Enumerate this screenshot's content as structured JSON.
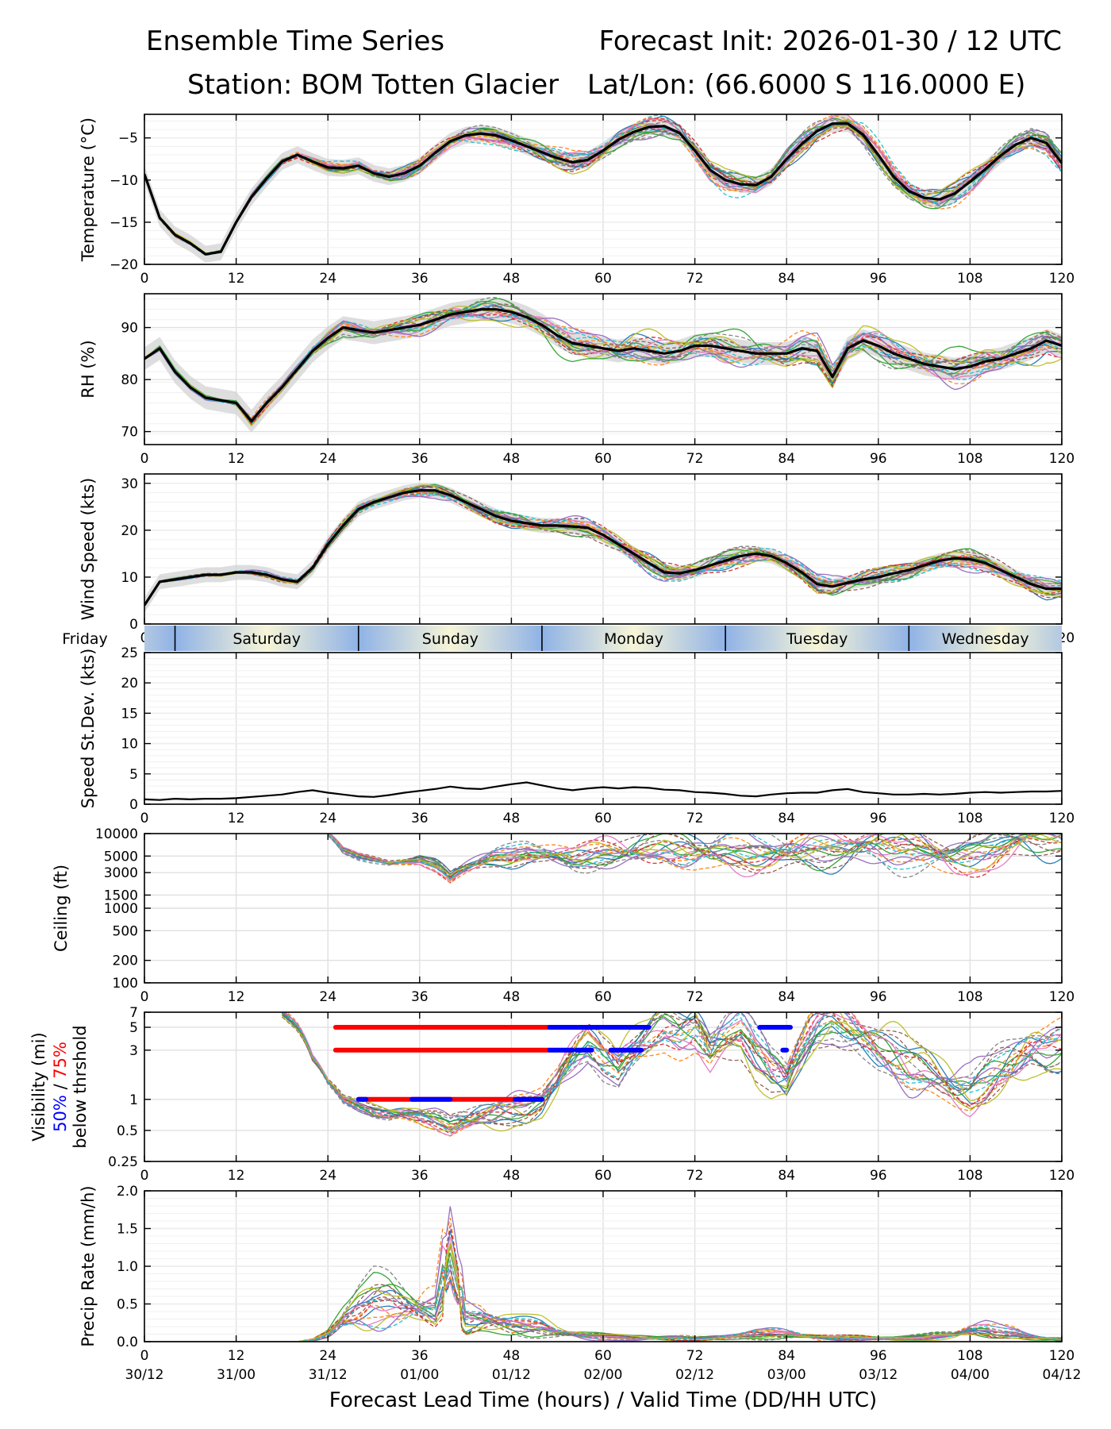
{
  "header": {
    "title_left": "Ensemble Time Series",
    "title_right": "Forecast Init: 2026-01-30 / 12 UTC",
    "station": "Station: BOM Totten Glacier",
    "latlon": "Lat/Lon: (66.6000 S 116.0000 E)"
  },
  "colors": {
    "members": [
      "#1f77b4",
      "#ff7f0e",
      "#2ca02c",
      "#d62728",
      "#9467bd",
      "#8c564b",
      "#e377c2",
      "#7f7f7f",
      "#bcbd22",
      "#17becf"
    ],
    "mean": "#000000",
    "spread": "#d3d3d3",
    "vis50": "#0000ff",
    "vis75": "#ff0000",
    "grid": "#e0e0e0"
  },
  "chart_data": [
    {
      "id": "temperature",
      "type": "line",
      "ylabel": "Temperature (°C)",
      "xlim": [
        0,
        120
      ],
      "ylim": [
        -20,
        -2.2
      ],
      "yticks": [
        -20,
        -15,
        -10,
        -5
      ],
      "ytick_labels": [
        "−20",
        "−15",
        "−10",
        "−5"
      ],
      "xticks": [
        0,
        12,
        24,
        36,
        48,
        60,
        72,
        84,
        96,
        108,
        120
      ],
      "ensemble_mean": {
        "x": [
          0,
          2,
          4,
          6,
          8,
          10,
          12,
          14,
          16,
          18,
          20,
          22,
          24,
          26,
          28,
          30,
          32,
          34,
          36,
          38,
          40,
          42,
          44,
          46,
          48,
          50,
          52,
          54,
          56,
          58,
          60,
          62,
          64,
          66,
          68,
          70,
          72,
          74,
          76,
          78,
          80,
          82,
          84,
          86,
          88,
          90,
          92,
          94,
          96,
          98,
          100,
          102,
          104,
          106,
          108,
          110,
          112,
          114,
          116,
          118,
          120
        ],
        "y": [
          -9.3,
          -14.5,
          -16.5,
          -17.5,
          -18.8,
          -18.5,
          -15.0,
          -12.0,
          -9.8,
          -7.8,
          -7.0,
          -7.8,
          -8.5,
          -8.6,
          -8.3,
          -9.2,
          -9.6,
          -9.2,
          -8.3,
          -6.8,
          -5.4,
          -4.7,
          -4.5,
          -4.7,
          -5.3,
          -6.0,
          -6.7,
          -7.4,
          -7.9,
          -7.6,
          -6.5,
          -5.2,
          -4.3,
          -3.7,
          -3.6,
          -4.4,
          -6.5,
          -8.8,
          -10.0,
          -10.5,
          -10.6,
          -9.6,
          -7.5,
          -5.7,
          -4.2,
          -3.3,
          -3.3,
          -4.6,
          -7.0,
          -9.6,
          -11.3,
          -12.1,
          -12.3,
          -11.6,
          -10.2,
          -8.7,
          -7.1,
          -5.8,
          -5.0,
          -5.6,
          -8.0
        ]
      },
      "members": 20,
      "member_spread": 1.0
    },
    {
      "id": "rh",
      "type": "line",
      "ylabel": "RH (%)",
      "xlim": [
        0,
        120
      ],
      "ylim": [
        67.5,
        96.5
      ],
      "yticks": [
        70,
        80,
        90
      ],
      "ytick_labels": [
        "70",
        "80",
        "90"
      ],
      "xticks": [
        0,
        12,
        24,
        36,
        48,
        60,
        72,
        84,
        96,
        108,
        120
      ],
      "ensemble_mean": {
        "x": [
          0,
          2,
          4,
          6,
          8,
          10,
          12,
          14,
          16,
          18,
          20,
          22,
          24,
          26,
          28,
          30,
          32,
          34,
          36,
          38,
          40,
          42,
          44,
          46,
          48,
          50,
          52,
          54,
          56,
          58,
          60,
          62,
          64,
          66,
          68,
          70,
          72,
          74,
          76,
          78,
          80,
          82,
          84,
          86,
          88,
          90,
          92,
          94,
          96,
          98,
          100,
          102,
          104,
          106,
          108,
          110,
          112,
          114,
          116,
          118,
          120
        ],
        "y": [
          84.0,
          86.0,
          81.5,
          78.5,
          76.5,
          76.0,
          75.5,
          72.0,
          75.5,
          78.5,
          82.0,
          85.5,
          88.0,
          90.0,
          89.5,
          89.0,
          89.5,
          90.0,
          90.5,
          91.5,
          92.5,
          93.0,
          93.5,
          93.5,
          93.0,
          92.0,
          90.5,
          88.5,
          87.0,
          86.5,
          86.0,
          85.5,
          86.0,
          85.5,
          85.0,
          85.5,
          86.5,
          86.5,
          86.0,
          85.5,
          85.0,
          85.0,
          85.0,
          86.0,
          85.5,
          80.5,
          86.0,
          87.5,
          86.5,
          85.0,
          84.0,
          83.0,
          82.5,
          82.0,
          82.5,
          83.5,
          84.0,
          85.0,
          86.0,
          87.5,
          86.5
        ]
      },
      "members": 20,
      "member_spread": 2.2
    },
    {
      "id": "wind_speed",
      "type": "line",
      "ylabel": "Wind Speed (kts)",
      "xlim": [
        0,
        120
      ],
      "ylim": [
        0,
        32
      ],
      "yticks": [
        0,
        10,
        20,
        30
      ],
      "ytick_labels": [
        "0",
        "10",
        "20",
        "30"
      ],
      "xticks": [
        0,
        12,
        24,
        36,
        48,
        60,
        72,
        84,
        96,
        108,
        120
      ],
      "ensemble_mean": {
        "x": [
          0,
          2,
          4,
          6,
          8,
          10,
          12,
          14,
          16,
          18,
          20,
          22,
          24,
          26,
          28,
          30,
          32,
          34,
          36,
          38,
          40,
          42,
          44,
          46,
          48,
          50,
          52,
          54,
          56,
          58,
          60,
          62,
          64,
          66,
          68,
          70,
          72,
          74,
          76,
          78,
          80,
          82,
          84,
          86,
          88,
          90,
          92,
          94,
          96,
          98,
          100,
          102,
          104,
          106,
          108,
          110,
          112,
          114,
          116,
          118,
          120
        ],
        "y": [
          4.0,
          9.0,
          9.5,
          10.0,
          10.5,
          10.5,
          11.0,
          11.0,
          10.5,
          9.5,
          9.0,
          12.0,
          17.0,
          21.0,
          24.5,
          26.0,
          27.0,
          28.0,
          28.5,
          28.5,
          27.5,
          26.0,
          24.5,
          23.0,
          22.0,
          21.5,
          21.0,
          21.0,
          20.8,
          20.5,
          19.0,
          17.0,
          15.0,
          13.0,
          11.0,
          10.8,
          11.5,
          12.5,
          13.5,
          14.5,
          15.0,
          14.5,
          13.0,
          11.0,
          8.5,
          8.0,
          8.8,
          9.5,
          10.0,
          10.8,
          11.5,
          12.5,
          13.5,
          14.0,
          13.8,
          13.0,
          11.5,
          10.0,
          8.5,
          7.5,
          7.5
        ]
      },
      "members": 20,
      "member_spread": 1.6
    },
    {
      "id": "speed_stdev",
      "type": "line",
      "ylabel": "Speed St.Dev. (kts)",
      "xlim": [
        0,
        120
      ],
      "ylim": [
        0,
        25
      ],
      "yticks": [
        0,
        5,
        10,
        15,
        20,
        25
      ],
      "ytick_labels": [
        "0",
        "5",
        "10",
        "15",
        "20",
        "25"
      ],
      "xticks": [
        0,
        12,
        24,
        36,
        48,
        60,
        72,
        84,
        96,
        108,
        120
      ],
      "ensemble_mean": {
        "x": [
          0,
          2,
          4,
          6,
          8,
          10,
          12,
          14,
          16,
          18,
          20,
          22,
          24,
          26,
          28,
          30,
          32,
          34,
          36,
          38,
          40,
          42,
          44,
          46,
          48,
          50,
          52,
          54,
          56,
          58,
          60,
          62,
          64,
          66,
          68,
          70,
          72,
          74,
          76,
          78,
          80,
          82,
          84,
          86,
          88,
          90,
          92,
          94,
          96,
          98,
          100,
          102,
          104,
          106,
          108,
          110,
          112,
          114,
          116,
          118,
          120
        ],
        "y": [
          0.8,
          0.7,
          0.9,
          0.8,
          0.9,
          0.9,
          1.0,
          1.2,
          1.4,
          1.6,
          2.0,
          2.3,
          1.9,
          1.6,
          1.3,
          1.2,
          1.5,
          1.9,
          2.2,
          2.5,
          2.9,
          2.6,
          2.5,
          2.9,
          3.3,
          3.6,
          3.1,
          2.6,
          2.3,
          2.6,
          2.8,
          2.6,
          2.8,
          2.7,
          2.4,
          2.3,
          2.0,
          1.9,
          1.7,
          1.4,
          1.3,
          1.6,
          1.8,
          1.9,
          1.9,
          2.3,
          2.5,
          2.0,
          1.8,
          1.6,
          1.6,
          1.7,
          1.6,
          1.7,
          1.9,
          2.0,
          1.9,
          2.0,
          2.1,
          2.1,
          2.2
        ]
      }
    },
    {
      "id": "ceiling",
      "type": "line",
      "ylabel": "Ceiling (ft)",
      "yscale": "log",
      "xlim": [
        0,
        120
      ],
      "ylim": [
        100,
        10000
      ],
      "yticks": [
        100,
        200,
        500,
        1000,
        1500,
        3000,
        5000,
        10000
      ],
      "ytick_labels": [
        "100",
        "200",
        "500",
        "1000",
        "1500",
        "3000",
        "5000",
        "10000"
      ],
      "xticks": [
        0,
        12,
        24,
        36,
        48,
        60,
        72,
        84,
        96,
        108,
        120
      ],
      "members_median": {
        "x": [
          24,
          26,
          28,
          30,
          32,
          34,
          36,
          38,
          40,
          42,
          44,
          46,
          48,
          50,
          52,
          54,
          56,
          58,
          60,
          62,
          64,
          66,
          68,
          70,
          72,
          74,
          76,
          78,
          80,
          82,
          84,
          86,
          88,
          90,
          92,
          94,
          96,
          98,
          100,
          102,
          104,
          106,
          108,
          110,
          112,
          114,
          116,
          118,
          120
        ],
        "y": [
          10000,
          6000,
          5000,
          4500,
          4000,
          4200,
          4500,
          3800,
          2600,
          3500,
          4200,
          4800,
          5000,
          5500,
          5200,
          5000,
          4500,
          4800,
          5200,
          5500,
          5800,
          6000,
          6500,
          6000,
          5500,
          5600,
          6200,
          5800,
          5200,
          5300,
          5800,
          5800,
          6000,
          6200,
          6400,
          6800,
          7000,
          6500,
          6200,
          5800,
          5400,
          5000,
          5200,
          5800,
          7000,
          8000,
          9000,
          9500,
          9800
        ]
      },
      "members": 20
    },
    {
      "id": "visibility",
      "type": "line",
      "ylabel": "Visibility (mi)",
      "ylabel_50": "50%",
      "ylabel_sep": "/",
      "ylabel_75": "75%",
      "ylabel_suffix": "below thrshold",
      "yscale": "log",
      "xlim": [
        0,
        120
      ],
      "ylim": [
        0.25,
        7
      ],
      "yticks": [
        0.25,
        0.5,
        1,
        3,
        5,
        7
      ],
      "ytick_labels": [
        "0.25",
        "0.5",
        "1",
        "3",
        "5",
        "7"
      ],
      "xticks": [
        0,
        12,
        24,
        36,
        48,
        60,
        72,
        84,
        96,
        108,
        120
      ],
      "members_median": {
        "x": [
          18,
          20,
          22,
          24,
          26,
          28,
          30,
          32,
          34,
          36,
          38,
          40,
          42,
          44,
          46,
          48,
          50,
          52,
          54,
          56,
          58,
          60,
          62,
          64,
          66,
          68,
          70,
          72,
          74,
          76,
          78,
          80,
          82,
          84,
          86,
          88,
          90,
          92,
          94,
          96,
          98,
          100,
          102,
          104,
          106,
          108,
          110,
          112,
          114,
          116,
          118,
          120
        ],
        "y": [
          7.0,
          5.0,
          2.5,
          1.5,
          1.0,
          0.85,
          0.75,
          0.7,
          0.72,
          0.7,
          0.65,
          0.55,
          0.62,
          0.7,
          0.75,
          0.8,
          0.85,
          1.0,
          1.5,
          2.5,
          3.5,
          2.5,
          2.0,
          3.0,
          4.0,
          5.0,
          4.5,
          5.0,
          3.0,
          4.0,
          5.0,
          3.0,
          2.0,
          1.6,
          3.0,
          5.0,
          6.0,
          5.0,
          4.0,
          3.0,
          2.5,
          2.0,
          1.8,
          1.5,
          1.3,
          1.2,
          1.5,
          2.0,
          2.5,
          3.0,
          3.0,
          3.5
        ]
      },
      "members": 20,
      "threshold_segments": [
        {
          "level": 5,
          "prob": "75%",
          "x0": 25,
          "x1": 53
        },
        {
          "level": 5,
          "prob": "50%",
          "x0": 53,
          "x1": 66
        },
        {
          "level": 5,
          "prob": "50%",
          "x0": 80.5,
          "x1": 84.5
        },
        {
          "level": 3,
          "prob": "75%",
          "x0": 25,
          "x1": 53
        },
        {
          "level": 3,
          "prob": "50%",
          "x0": 53,
          "x1": 56
        },
        {
          "level": 3,
          "prob": "50%",
          "x0": 56.5,
          "x1": 58.5
        },
        {
          "level": 3,
          "prob": "50%",
          "x0": 61,
          "x1": 65
        },
        {
          "level": 3,
          "prob": "50%",
          "x0": 83.5,
          "x1": 84
        },
        {
          "level": 1,
          "prob": "75%",
          "x0": 28,
          "x1": 52
        },
        {
          "level": 1,
          "prob": "50%",
          "x0": 28,
          "x1": 29
        },
        {
          "level": 1,
          "prob": "50%",
          "x0": 35,
          "x1": 40
        },
        {
          "level": 1,
          "prob": "50%",
          "x0": 48.5,
          "x1": 52
        }
      ]
    },
    {
      "id": "precip",
      "type": "line",
      "ylabel": "Precip Rate (mm/h)",
      "xlabel": "Forecast Lead Time (hours) / Valid Time (DD/HH UTC)",
      "xlim": [
        0,
        120
      ],
      "ylim": [
        0,
        2.0
      ],
      "yticks": [
        0.0,
        0.5,
        1.0,
        1.5,
        2.0
      ],
      "ytick_labels": [
        "0.0",
        "0.5",
        "1.0",
        "1.5",
        "2.0"
      ],
      "xticks": [
        0,
        12,
        24,
        36,
        48,
        60,
        72,
        84,
        96,
        108,
        120
      ],
      "valid_time_labels": [
        "30/12",
        "31/00",
        "31/12",
        "01/00",
        "01/12",
        "02/00",
        "02/12",
        "03/00",
        "03/12",
        "04/00",
        "04/12"
      ],
      "members_median": {
        "x": [
          0,
          20,
          22,
          24,
          26,
          28,
          30,
          32,
          34,
          36,
          38,
          40,
          42,
          44,
          46,
          48,
          50,
          52,
          54,
          56,
          58,
          60,
          62,
          64,
          66,
          68,
          70,
          72,
          74,
          76,
          78,
          80,
          82,
          84,
          86,
          88,
          90,
          92,
          94,
          96,
          98,
          100,
          102,
          104,
          106,
          108,
          110,
          112,
          114,
          116,
          118,
          120
        ],
        "y": [
          0,
          0,
          0.02,
          0.1,
          0.3,
          0.45,
          0.55,
          0.55,
          0.5,
          0.45,
          0.4,
          1.2,
          0.3,
          0.3,
          0.25,
          0.22,
          0.2,
          0.18,
          0.12,
          0.1,
          0.08,
          0.07,
          0.06,
          0.05,
          0.05,
          0.05,
          0.05,
          0.04,
          0.05,
          0.06,
          0.08,
          0.1,
          0.1,
          0.1,
          0.08,
          0.06,
          0.05,
          0.05,
          0.05,
          0.04,
          0.04,
          0.05,
          0.06,
          0.08,
          0.1,
          0.15,
          0.15,
          0.12,
          0.1,
          0.06,
          0.04,
          0.03
        ]
      },
      "members": 20
    }
  ],
  "day_band": {
    "labels": [
      "Friday",
      "Saturday",
      "Sunday",
      "Monday",
      "Tuesday",
      "Wednesday"
    ],
    "boundaries_hours": [
      4,
      28,
      52,
      76,
      100
    ]
  }
}
